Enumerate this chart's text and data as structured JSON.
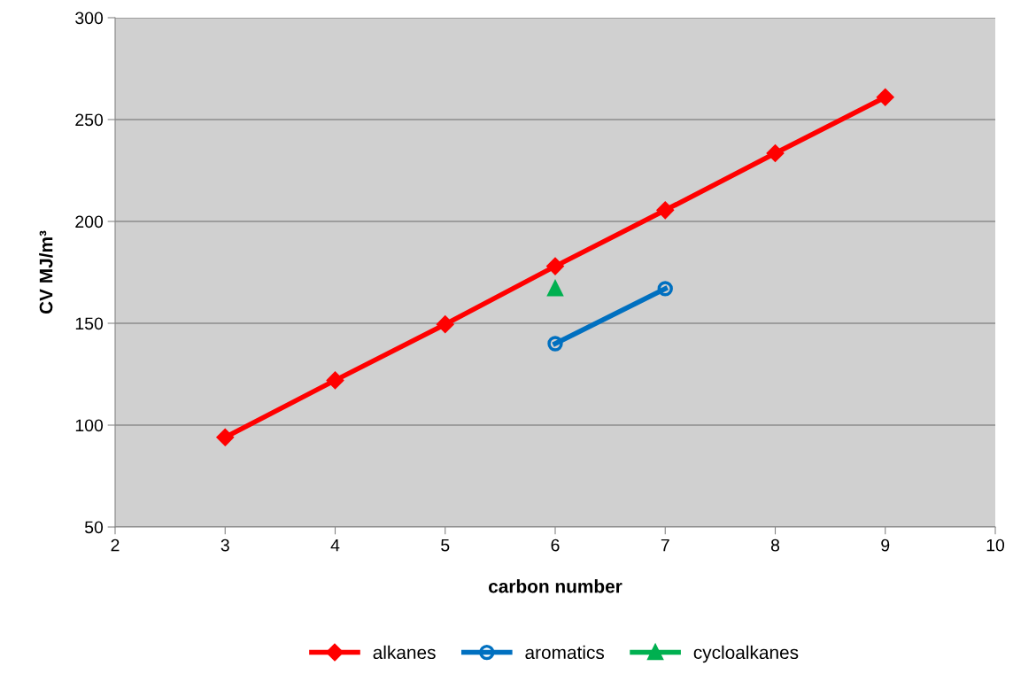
{
  "chart_data": {
    "type": "line",
    "xlabel": "carbon number",
    "ylabel": "CV MJ/m³",
    "xlim": [
      2,
      10
    ],
    "xticks": [
      2,
      3,
      4,
      5,
      6,
      7,
      8,
      9,
      10
    ],
    "ylim": [
      50,
      300
    ],
    "yticks": [
      50,
      100,
      150,
      200,
      250,
      300
    ],
    "grid": "y",
    "legend": "bottom",
    "series": [
      {
        "name": "alkanes",
        "color": "#ff0000",
        "marker": "diamond",
        "x": [
          3,
          4,
          5,
          6,
          7,
          8,
          9
        ],
        "values": [
          94,
          122,
          149.5,
          178,
          205.5,
          233.5,
          261
        ]
      },
      {
        "name": "aromatics",
        "color": "#0070c0",
        "marker": "circle",
        "x": [
          6,
          7
        ],
        "values": [
          140,
          167
        ]
      },
      {
        "name": "cycloalkanes",
        "color": "#00b050",
        "marker": "triangle",
        "x": [
          6
        ],
        "values": [
          167
        ]
      }
    ]
  }
}
